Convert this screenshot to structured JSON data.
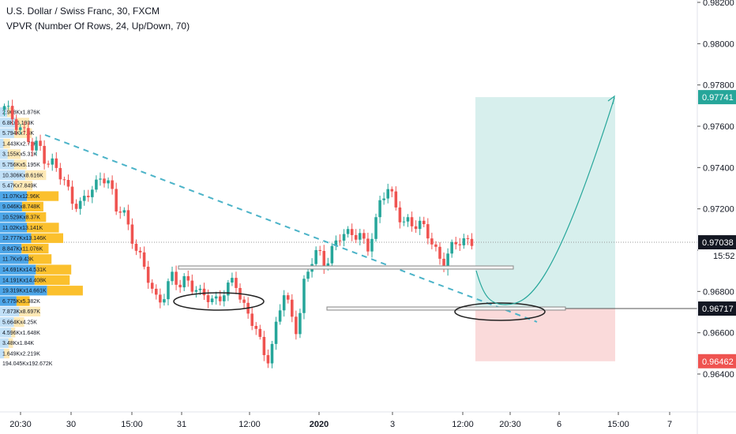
{
  "legend": {
    "title": "U.S. Dollar / Swiss Franc, 30, FXCM",
    "indicator": "VPVR (Number Of Rows, 24, Up/Down, 70)"
  },
  "colors": {
    "up": "#26a69a",
    "down": "#ef5350",
    "vp_up": "#4da6e8",
    "vp_down": "#fbc02d",
    "target_zone": "#d7efed",
    "stop_zone": "#fadada",
    "trendline": "#4bb3c8",
    "tag_green": "#26a69a",
    "tag_red": "#ef5350",
    "tag_dark": "#131722"
  },
  "time_tag": "15:52",
  "chart_data": {
    "type": "candlestick",
    "symbol": "USDCHF",
    "interval": "30",
    "y_axis": {
      "ticks": [
        "0.98200",
        "0.98000",
        "0.97800",
        "0.97600",
        "0.97400",
        "0.97200",
        "0.97000",
        "0.96800",
        "0.96600",
        "0.96400"
      ],
      "range": [
        0.9625,
        0.9822
      ]
    },
    "x_axis": {
      "ticks": [
        "20:30",
        "30",
        "15:00",
        "31",
        "12:00",
        "2020",
        "3",
        "12:00",
        "20:30",
        "6",
        "15:00",
        "7"
      ]
    },
    "price_tags": [
      {
        "label": "0.97741",
        "value": 0.97741,
        "color": "green"
      },
      {
        "label": "0.97038",
        "value": 0.97038,
        "color": "dark"
      },
      {
        "label": "0.96717",
        "value": 0.96717,
        "color": "dark"
      },
      {
        "label": "0.96462",
        "value": 0.96462,
        "color": "red"
      }
    ],
    "position": {
      "target": 0.97741,
      "entry": 0.96717,
      "stop": 0.96462
    },
    "volume_profile": [
      {
        "label": "2.968Kx1.876K",
        "up": 2.968,
        "down": 1.876
      },
      {
        "label": "6.8Kx5.193K",
        "up": 6.8,
        "down": 5.193
      },
      {
        "label": "5.794Kx7.3K",
        "up": 5.794,
        "down": 7.3
      },
      {
        "label": "1.443Kx2.71K",
        "up": 1.443,
        "down": 2.71
      },
      {
        "label": "3.155Kx5.31K",
        "up": 3.155,
        "down": 5.31
      },
      {
        "label": "5.756Kx5.195K",
        "up": 5.756,
        "down": 5.195
      },
      {
        "label": "10.306Kx8.616K",
        "up": 10.306,
        "down": 8.616
      },
      {
        "label": "5.47Kx7.849K",
        "up": 5.47,
        "down": 7.849
      },
      {
        "label": "11.07Kx12.96K",
        "up": 11.07,
        "down": 12.96
      },
      {
        "label": "9.046Kx8.748K",
        "up": 9.046,
        "down": 8.748
      },
      {
        "label": "10.529Kx8.37K",
        "up": 10.529,
        "down": 8.37
      },
      {
        "label": "11.02Kx13.141K",
        "up": 11.02,
        "down": 13.141
      },
      {
        "label": "12.777Kx13.146K",
        "up": 12.777,
        "down": 13.146
      },
      {
        "label": "8.847Kx11.076K",
        "up": 8.847,
        "down": 11.076
      },
      {
        "label": "11.7Kx9.43K",
        "up": 11.7,
        "down": 9.43
      },
      {
        "label": "14.691Kx14.531K",
        "up": 14.691,
        "down": 14.531
      },
      {
        "label": "14.191Kx14.408K",
        "up": 14.191,
        "down": 14.408
      },
      {
        "label": "19.319Kx14.661K",
        "up": 19.319,
        "down": 14.661
      },
      {
        "label": "6.775Kx5.382K",
        "up": 6.775,
        "down": 5.382
      },
      {
        "label": "7.873Kx8.697K",
        "up": 7.873,
        "down": 8.697
      },
      {
        "label": "5.664Kx4.25K",
        "up": 5.664,
        "down": 4.25
      },
      {
        "label": "4.596Kx1.648K",
        "up": 4.596,
        "down": 1.648
      },
      {
        "label": "3.48Kx1.84K",
        "up": 3.48,
        "down": 1.84
      },
      {
        "label": "1.649Kx2.219K",
        "up": 1.649,
        "down": 2.219
      }
    ],
    "volume_total": "194.045Kx192.672K",
    "path": [
      0.9701,
      0.9703,
      0.9702,
      0.97,
      0.9691,
      0.9687,
      0.969,
      0.9693,
      0.9688,
      0.9685,
      0.968,
      0.9683,
      0.9684,
      0.9683,
      0.9686,
      0.9682,
      0.968,
      0.9683,
      0.9687,
      0.9679,
      0.9671,
      0.9673,
      0.968,
      0.9677,
      0.9678,
      0.9672,
      0.9668,
      0.967,
      0.967,
      0.9676,
      0.9689,
      0.9692,
      0.9695,
      0.97,
      0.9703,
      0.9707,
      0.9711,
      0.9715,
      0.9721,
      0.9728,
      0.9733,
      0.973,
      0.9725,
      0.972,
      0.9717,
      0.9716,
      0.9715,
      0.9711,
      0.9709,
      0.9707,
      0.9706,
      0.9706
    ],
    "path_close": [
      0.9694,
      0.9694,
      0.9693,
      0.9693,
      0.9689,
      0.9686,
      0.9682,
      0.9679,
      0.9675,
      0.9673,
      0.9673,
      0.9675,
      0.9674,
      0.9675,
      0.9674,
      0.9676,
      0.968,
      0.9683,
      0.968,
      0.9673,
      0.9669,
      0.9662,
      0.9658,
      0.966,
      0.9664,
      0.9671,
      0.968,
      0.9685,
      0.9692,
      0.9695,
      0.969,
      0.9698,
      0.9703,
      0.9711,
      0.9719,
      0.9728,
      0.9732,
      0.9727,
      0.9721,
      0.9719,
      0.9717,
      0.9717,
      0.9713,
      0.9708,
      0.9703,
      0.9701,
      0.9695,
      0.9697,
      0.9703,
      0.9707,
      0.9705,
      0.9704
    ]
  }
}
